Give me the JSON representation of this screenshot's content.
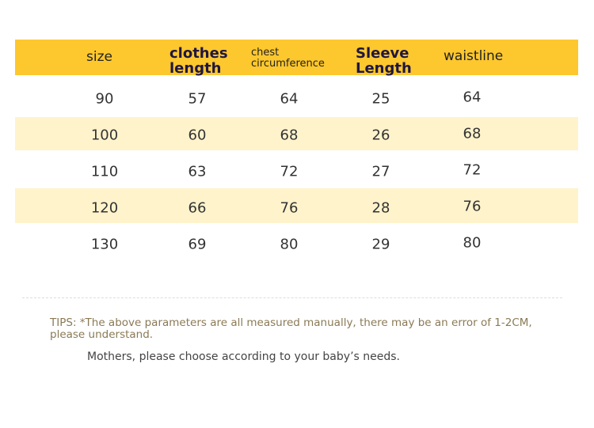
{
  "table": {
    "header": [
      "size",
      "clothes length",
      "chest circumference",
      "Sleeve Length",
      "waistline"
    ],
    "rows": [
      [
        "90",
        "57",
        "64",
        "25",
        "64"
      ],
      [
        "100",
        "60",
        "68",
        "26",
        "68"
      ],
      [
        "110",
        "63",
        "72",
        "27",
        "72"
      ],
      [
        "120",
        "66",
        "76",
        "28",
        "76"
      ],
      [
        "130",
        "69",
        "80",
        "29",
        "80"
      ]
    ]
  },
  "tips": "TIPS: *The above parameters are all measured manually, there may be an error of 1-2CM, please understand.",
  "note": "Mothers, please choose according to your baby’s needs."
}
